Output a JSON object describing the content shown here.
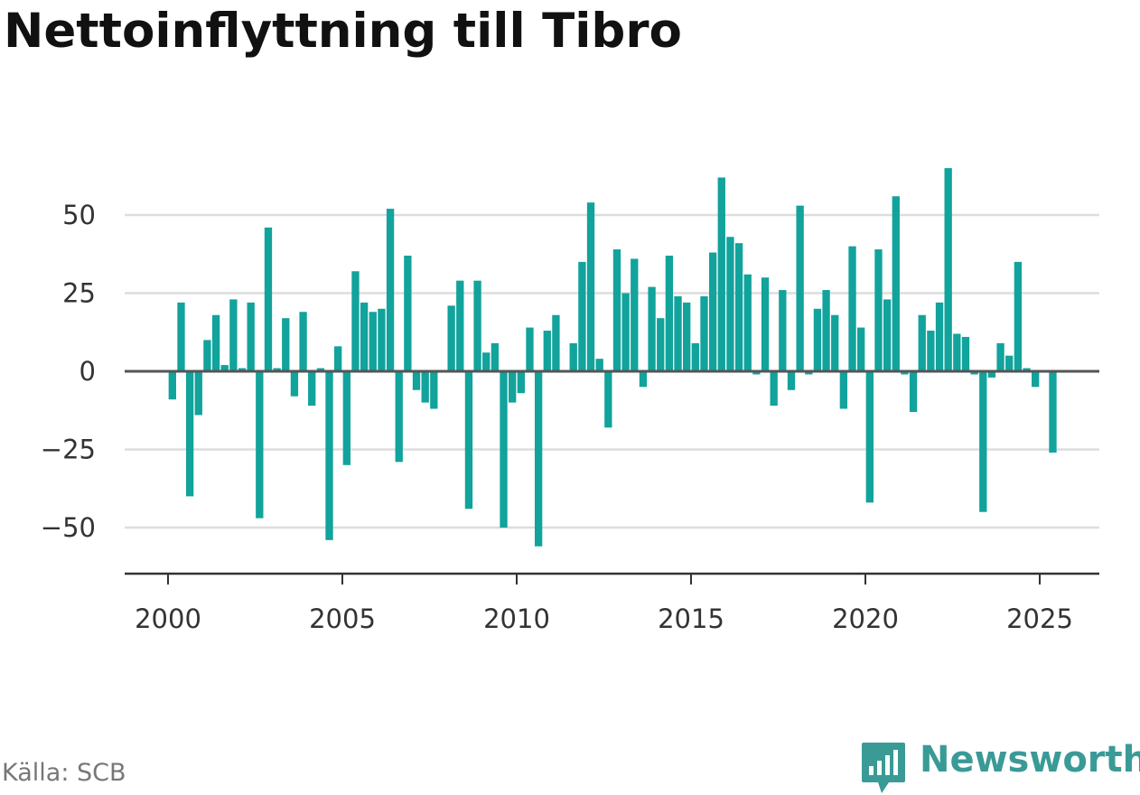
{
  "title": "Nettoinflyttning till Tibro",
  "source": "Källa: SCB",
  "brand": {
    "name": "Newsworthy",
    "icon": "newsworthy-logo-icon",
    "color": "#3a9a96"
  },
  "colors": {
    "bar": "#11a39c",
    "grid": "#dddddd",
    "zero": "#555555",
    "axis": "#333333"
  },
  "chart_data": {
    "type": "bar",
    "title": "Nettoinflyttning till Tibro",
    "xlabel": "",
    "ylabel": "",
    "xlim": [
      1997.7,
      2026.8
    ],
    "ylim": [
      -65,
      70
    ],
    "yticks": [
      -50,
      -25,
      0,
      25,
      50
    ],
    "ytick_labels": [
      "−50",
      "−25",
      "0",
      "25",
      "50"
    ],
    "xticks": [
      2000,
      2005,
      2010,
      2015,
      2020,
      2025
    ],
    "xtick_labels": [
      "2000",
      "2005",
      "2010",
      "2015",
      "2020",
      "2025"
    ],
    "grid": true,
    "legend": "none",
    "bar_width_years": 0.2,
    "x": [
      2000.125,
      2000.375,
      2000.625,
      2000.875,
      2001.125,
      2001.375,
      2001.625,
      2001.875,
      2002.125,
      2002.375,
      2002.625,
      2002.875,
      2003.125,
      2003.375,
      2003.625,
      2003.875,
      2004.125,
      2004.375,
      2004.625,
      2004.875,
      2005.125,
      2005.375,
      2005.625,
      2005.875,
      2006.125,
      2006.375,
      2006.625,
      2006.875,
      2007.125,
      2007.375,
      2007.625,
      2007.875,
      2008.125,
      2008.375,
      2008.625,
      2008.875,
      2009.125,
      2009.375,
      2009.625,
      2009.875,
      2010.125,
      2010.375,
      2010.625,
      2010.875,
      2011.125,
      2011.375,
      2011.625,
      2011.875,
      2012.125,
      2012.375,
      2012.625,
      2012.875,
      2013.125,
      2013.375,
      2013.625,
      2013.875,
      2014.125,
      2014.375,
      2014.625,
      2014.875,
      2015.125,
      2015.375,
      2015.625,
      2015.875,
      2016.125,
      2016.375,
      2016.625,
      2016.875,
      2017.125,
      2017.375,
      2017.625,
      2017.875,
      2018.125,
      2018.375,
      2018.625,
      2018.875,
      2019.125,
      2019.375,
      2019.625,
      2019.875,
      2020.125,
      2020.375,
      2020.625,
      2020.875,
      2021.125,
      2021.375,
      2021.625,
      2021.875,
      2022.125,
      2022.375,
      2022.625,
      2022.875,
      2023.125,
      2023.375,
      2023.625,
      2023.875,
      2024.125,
      2024.375,
      2024.625,
      2024.875,
      2025.125,
      2025.375
    ],
    "values": [
      -9,
      22,
      -40,
      -14,
      10,
      18,
      2,
      23,
      1,
      22,
      -47,
      46,
      1,
      17,
      -8,
      19,
      -11,
      1,
      -54,
      8,
      -30,
      32,
      22,
      19,
      20,
      52,
      -29,
      37,
      -6,
      -10,
      -12,
      0,
      21,
      29,
      -44,
      29,
      6,
      9,
      -50,
      -10,
      -7,
      14,
      -56,
      13,
      18,
      0,
      9,
      35,
      54,
      4,
      -18,
      39,
      25,
      36,
      -5,
      27,
      17,
      37,
      24,
      22,
      9,
      24,
      38,
      62,
      43,
      41,
      31,
      -1,
      30,
      -11,
      26,
      -6,
      53,
      -1,
      20,
      26,
      18,
      -12,
      40,
      14,
      -42,
      39,
      23,
      56,
      -1,
      -13,
      18,
      13,
      22,
      65,
      12,
      11,
      -1,
      -45,
      -2,
      9,
      5,
      35,
      1,
      -5,
      0,
      -26
    ]
  }
}
